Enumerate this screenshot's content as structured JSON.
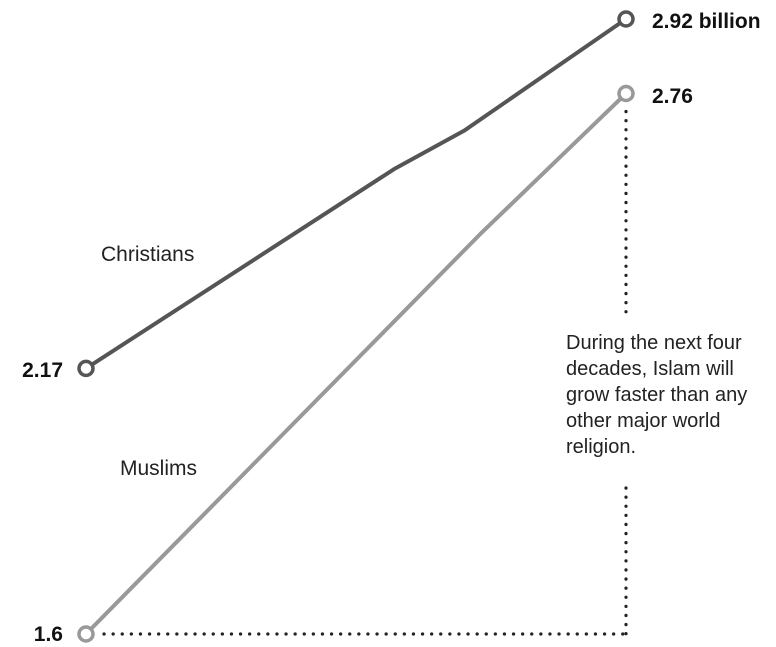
{
  "chart_data": {
    "type": "line",
    "series": [
      {
        "name": "Christians",
        "values": [
          2.17,
          2.92
        ],
        "start_label": "2.17",
        "end_label": "2.92 billion",
        "color": "#555555"
      },
      {
        "name": "Muslims",
        "values": [
          1.6,
          2.76
        ],
        "start_label": "1.6",
        "end_label": "2.76",
        "color": "#999999"
      }
    ],
    "ylim": [
      1.6,
      2.92
    ],
    "grid": false,
    "legend": "inline labels beside lines",
    "annotation": "During the next four decades, Islam will grow faster than any other major world religion."
  }
}
